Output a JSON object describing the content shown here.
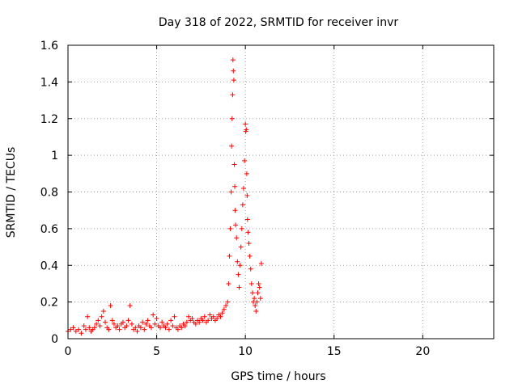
{
  "chart_data": {
    "type": "scatter",
    "title": "Day 318 of 2022, SRMTID for receiver invr",
    "xlabel": "GPS time / hours",
    "ylabel": "SRMTID / TECUs",
    "xlim": [
      0,
      24
    ],
    "ylim": [
      0,
      1.6
    ],
    "xticks": [
      0,
      5,
      10,
      15,
      20
    ],
    "yticks": [
      0,
      0.2,
      0.4,
      0.6,
      0.8,
      1,
      1.2,
      1.4,
      1.6
    ],
    "xtick_labels": [
      "0",
      "5",
      "10",
      "15",
      "20"
    ],
    "ytick_labels": [
      "0",
      "0.2",
      "0.4",
      "0.6",
      "0.8",
      "1",
      "1.2",
      "1.4",
      "1.6"
    ],
    "grid": true,
    "marker": "+",
    "series_color": "#ff0000",
    "series": [
      {
        "name": "SRMTID",
        "x": [
          0.0,
          0.15,
          0.3,
          0.45,
          0.6,
          0.75,
          0.9,
          1.0,
          1.1,
          1.2,
          1.3,
          1.4,
          1.5,
          1.6,
          1.7,
          1.8,
          1.9,
          2.0,
          2.1,
          2.2,
          2.3,
          2.4,
          2.5,
          2.6,
          2.7,
          2.8,
          2.9,
          3.0,
          3.1,
          3.2,
          3.3,
          3.4,
          3.5,
          3.6,
          3.7,
          3.8,
          3.9,
          4.0,
          4.1,
          4.2,
          4.3,
          4.4,
          4.5,
          4.6,
          4.7,
          4.8,
          4.9,
          5.0,
          5.1,
          5.2,
          5.3,
          5.4,
          5.5,
          5.6,
          5.7,
          5.8,
          5.9,
          6.0,
          6.1,
          6.2,
          6.3,
          6.4,
          6.5,
          6.6,
          6.7,
          6.8,
          6.9,
          7.0,
          7.1,
          7.2,
          7.3,
          7.4,
          7.5,
          7.6,
          7.7,
          7.8,
          7.9,
          8.0,
          8.1,
          8.2,
          8.3,
          8.4,
          8.5,
          8.6,
          8.7,
          8.8,
          8.9,
          9.0,
          9.05,
          9.1,
          9.15,
          9.2,
          9.22,
          9.25,
          9.28,
          9.3,
          9.32,
          9.35,
          9.38,
          9.4,
          9.42,
          9.45,
          9.5,
          9.55,
          9.6,
          9.65,
          9.7,
          9.75,
          9.8,
          9.85,
          9.9,
          9.95,
          10.0,
          10.02,
          10.05,
          10.08,
          10.1,
          10.12,
          10.15,
          10.2,
          10.25,
          10.3,
          10.35,
          10.4,
          10.45,
          10.5,
          10.55,
          10.6,
          10.65,
          10.7,
          10.75,
          10.8,
          10.85,
          10.9
        ],
        "y": [
          0.04,
          0.05,
          0.06,
          0.04,
          0.05,
          0.03,
          0.07,
          0.05,
          0.12,
          0.06,
          0.04,
          0.05,
          0.06,
          0.08,
          0.1,
          0.07,
          0.12,
          0.15,
          0.09,
          0.06,
          0.05,
          0.18,
          0.1,
          0.08,
          0.06,
          0.07,
          0.05,
          0.08,
          0.09,
          0.06,
          0.07,
          0.1,
          0.18,
          0.08,
          0.05,
          0.06,
          0.04,
          0.07,
          0.06,
          0.09,
          0.05,
          0.08,
          0.1,
          0.07,
          0.06,
          0.13,
          0.08,
          0.11,
          0.07,
          0.06,
          0.09,
          0.07,
          0.06,
          0.08,
          0.05,
          0.1,
          0.07,
          0.12,
          0.06,
          0.05,
          0.07,
          0.06,
          0.08,
          0.07,
          0.09,
          0.12,
          0.1,
          0.11,
          0.09,
          0.08,
          0.1,
          0.09,
          0.11,
          0.1,
          0.12,
          0.09,
          0.1,
          0.13,
          0.11,
          0.12,
          0.1,
          0.11,
          0.13,
          0.12,
          0.14,
          0.16,
          0.18,
          0.2,
          0.3,
          0.45,
          0.6,
          0.8,
          1.05,
          1.2,
          1.33,
          1.52,
          1.46,
          1.41,
          0.95,
          0.83,
          0.7,
          0.62,
          0.55,
          0.42,
          0.35,
          0.28,
          0.4,
          0.5,
          0.6,
          0.73,
          0.82,
          0.97,
          1.17,
          1.13,
          1.14,
          0.9,
          0.78,
          0.65,
          0.58,
          0.52,
          0.45,
          0.38,
          0.3,
          0.25,
          0.2,
          0.22,
          0.18,
          0.15,
          0.2,
          0.25,
          0.3,
          0.28,
          0.22,
          0.41
        ]
      }
    ]
  }
}
